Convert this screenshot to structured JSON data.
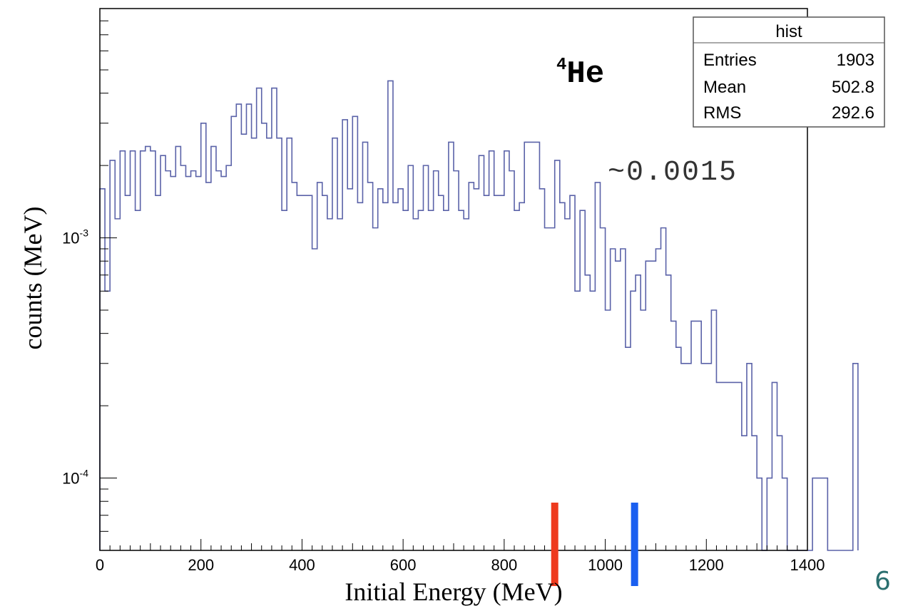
{
  "chart_data": {
    "type": "histogram",
    "xlabel": "Initial Energy (MeV)",
    "ylabel": "counts (MeV)",
    "xlim": [
      0,
      1400
    ],
    "ylim": [
      5e-05,
      0.009
    ],
    "yscale": "log",
    "bin_width": 10,
    "x_ticks": [
      "0",
      "200",
      "400",
      "600",
      "800",
      "1000",
      "1200",
      "1400"
    ],
    "y_ticks": [
      {
        "value": 0.001,
        "label_base": "10",
        "label_exp": "-3"
      },
      {
        "value": 0.0001,
        "label_base": "10",
        "label_exp": "-4"
      }
    ],
    "series": [
      {
        "color": "#5a62a8",
        "values": [
          0.0016,
          0.0006,
          0.0021,
          0.0012,
          0.0023,
          0.0015,
          0.0023,
          0.0013,
          0.0023,
          0.0024,
          0.0023,
          0.0015,
          0.0022,
          0.0019,
          0.0018,
          0.0024,
          0.002,
          0.0018,
          0.0019,
          0.0018,
          0.003,
          0.0017,
          0.0024,
          0.0019,
          0.0018,
          0.002,
          0.0032,
          0.0036,
          0.0027,
          0.0036,
          0.0026,
          0.0042,
          0.003,
          0.0026,
          0.0042,
          0.0026,
          0.0013,
          0.0026,
          0.0017,
          0.0015,
          0.0015,
          0.0015,
          0.0009,
          0.0017,
          0.0015,
          0.0012,
          0.0026,
          0.0012,
          0.0031,
          0.0016,
          0.0032,
          0.0014,
          0.0025,
          0.0017,
          0.0011,
          0.0016,
          0.0014,
          0.0045,
          0.0014,
          0.0016,
          0.0013,
          0.002,
          0.0012,
          0.0013,
          0.002,
          0.0013,
          0.0019,
          0.0015,
          0.0013,
          0.0025,
          0.0019,
          0.0013,
          0.0012,
          0.0017,
          0.0016,
          0.0022,
          0.0015,
          0.0023,
          0.0015,
          0.0015,
          0.0023,
          0.0019,
          0.0013,
          0.0014,
          0.0025,
          0.0025,
          0.0025,
          0.0016,
          0.0011,
          0.0011,
          0.0021,
          0.0014,
          0.0012,
          0.0015,
          0.0006,
          0.0013,
          0.0007,
          0.0006,
          0.0017,
          0.0011,
          0.0005,
          0.0009,
          0.0008,
          0.0009,
          0.00035,
          0.0006,
          0.0007,
          0.0005,
          0.0008,
          0.0008,
          0.0009,
          0.0011,
          0.0007,
          0.00045,
          0.00035,
          0.0003,
          0.0003,
          0.00045,
          0.00045,
          0.0003,
          0.0003,
          0.0005,
          0.00025,
          0.00025,
          0.00025,
          0.00025,
          0.00025,
          0.00015,
          0.0003,
          0.00015,
          0.0001,
          5e-05,
          0.0001,
          0.00025,
          0.00015,
          0.0001,
          5e-05,
          5e-05,
          5e-05,
          5e-05,
          5e-05,
          0.0001,
          0.0001,
          0.0001,
          5e-05,
          5e-05,
          5e-05,
          5e-05,
          5e-05,
          0.0003
        ]
      }
    ],
    "markers": [
      {
        "x": 900,
        "color": "#ee3a1e"
      },
      {
        "x": 1058,
        "color": "#1a5ff0"
      }
    ]
  },
  "stats_box": {
    "title": "hist",
    "rows": [
      {
        "label": "Entries",
        "value": "1903"
      },
      {
        "label": "Mean",
        "value": "502.8"
      },
      {
        "label": "RMS",
        "value": "292.6"
      }
    ]
  },
  "annotations": {
    "isotope_mass": "4",
    "isotope_symbol": "He",
    "fraction": "~0.0015"
  },
  "page_number": "6"
}
